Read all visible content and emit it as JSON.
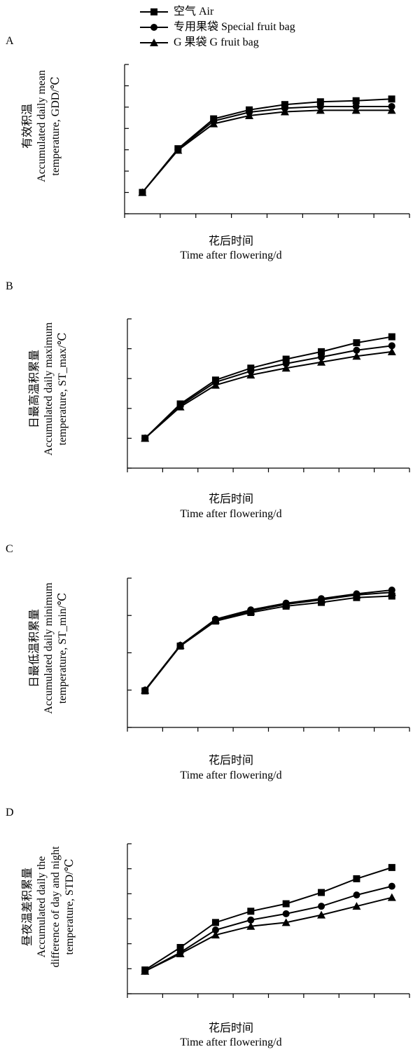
{
  "legend": {
    "items": [
      {
        "name": "空气 Air",
        "marker": "square"
      },
      {
        "name": "专用果袋 Special fruit bag",
        "marker": "circle"
      },
      {
        "name": "G 果袋 G fruit bag",
        "marker": "triangle"
      }
    ]
  },
  "chart_data": [
    {
      "type": "line",
      "panel": "A",
      "ylabel_cn": "有效积温",
      "ylabel_en1": "Accumulated daily mean",
      "ylabel_en2": "temperature, GDD/℃",
      "xlabel_cn": "花后时间",
      "xlabel_en": "Time after flowering/d",
      "ylim": [
        0,
        7
      ],
      "xlim": [
        0,
        8
      ],
      "x": [
        0.5,
        1.5,
        2.5,
        3.5,
        4.5,
        5.5,
        6.5,
        7.5
      ],
      "series": [
        {
          "name": "空气 Air",
          "values": [
            1.0,
            3.05,
            4.45,
            4.87,
            5.12,
            5.25,
            5.3,
            5.38
          ]
        },
        {
          "name": "专用果袋 Special fruit bag",
          "values": [
            1.0,
            3.02,
            4.35,
            4.76,
            4.95,
            5.03,
            5.03,
            5.03
          ]
        },
        {
          "name": "G 果袋 G fruit bag",
          "values": [
            1.0,
            2.98,
            4.22,
            4.6,
            4.78,
            4.85,
            4.85,
            4.85
          ]
        }
      ]
    },
    {
      "type": "line",
      "panel": "B",
      "ylabel_cn": "日最高温积累量",
      "ylabel_en1": "Accumulated daily maximum",
      "ylabel_en2": "temperature, ST_max/℃",
      "xlabel_cn": "花后时间",
      "xlabel_en": "Time after flowering/d",
      "ylim": [
        0,
        5
      ],
      "xlim": [
        0,
        8
      ],
      "x": [
        0.5,
        1.5,
        2.5,
        3.5,
        4.5,
        5.5,
        6.5,
        7.5
      ],
      "series": [
        {
          "name": "空气 Air",
          "values": [
            1.0,
            2.15,
            2.95,
            3.35,
            3.65,
            3.9,
            4.2,
            4.4
          ]
        },
        {
          "name": "专用果袋 Special fruit bag",
          "values": [
            1.0,
            2.1,
            2.88,
            3.25,
            3.5,
            3.72,
            3.95,
            4.1
          ]
        },
        {
          "name": "G 果袋 G fruit bag",
          "values": [
            1.0,
            2.05,
            2.78,
            3.12,
            3.35,
            3.55,
            3.75,
            3.9
          ]
        }
      ]
    },
    {
      "type": "line",
      "panel": "C",
      "ylabel_cn": "日最低温积累量",
      "ylabel_en1": "Accumulated daily minimum",
      "ylabel_en2": "temperature, ST_min/℃",
      "xlabel_cn": "花后时间",
      "xlabel_en": "Time after flowering/d",
      "ylim": [
        0,
        4
      ],
      "xlim": [
        0,
        8
      ],
      "x": [
        0.5,
        1.5,
        2.5,
        3.5,
        4.5,
        5.5,
        6.5,
        7.5
      ],
      "series": [
        {
          "name": "空气 Air",
          "values": [
            0.98,
            2.18,
            2.85,
            3.08,
            3.25,
            3.35,
            3.48,
            3.52
          ]
        },
        {
          "name": "专用果袋 Special fruit bag",
          "values": [
            1.0,
            2.2,
            2.9,
            3.15,
            3.33,
            3.45,
            3.58,
            3.68
          ]
        },
        {
          "name": "G 果袋 G fruit bag",
          "values": [
            1.0,
            2.2,
            2.88,
            3.12,
            3.3,
            3.42,
            3.55,
            3.62
          ]
        }
      ]
    },
    {
      "type": "line",
      "panel": "D",
      "ylabel_cn": "昼夜温差积累量",
      "ylabel_en1": "Accumulated daily the",
      "ylabel_en2": "difference of day and night",
      "ylabel_en3": "temperature, STD/℃",
      "xlabel_cn": "花后时间",
      "xlabel_en": "Time after flowering/d",
      "ylim": [
        0,
        6
      ],
      "xlim": [
        0,
        8
      ],
      "x": [
        0.5,
        1.5,
        2.5,
        3.5,
        4.5,
        5.5,
        6.5,
        7.5
      ],
      "series": [
        {
          "name": "空气 Air",
          "values": [
            0.95,
            1.85,
            2.85,
            3.3,
            3.6,
            4.05,
            4.6,
            5.05
          ]
        },
        {
          "name": "专用果袋 Special fruit bag",
          "values": [
            0.9,
            1.65,
            2.55,
            2.95,
            3.2,
            3.5,
            3.95,
            4.3
          ]
        },
        {
          "name": "G 果袋 G fruit bag",
          "values": [
            0.9,
            1.6,
            2.35,
            2.7,
            2.85,
            3.15,
            3.5,
            3.85
          ]
        }
      ]
    }
  ]
}
